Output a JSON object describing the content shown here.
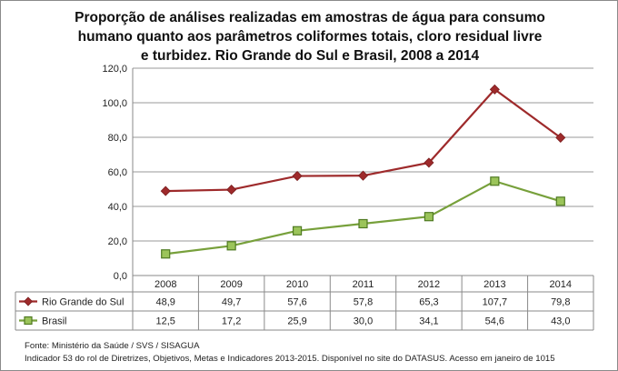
{
  "chart_data": {
    "type": "line",
    "title_lines": [
      "Proporção de análises realizadas em amostras de água para consumo",
      "humano quanto aos parâmetros coliformes totais, cloro residual livre",
      "e turbidez. Rio Grande do Sul e Brasil, 2008 a 2014"
    ],
    "categories": [
      "2008",
      "2009",
      "2010",
      "2011",
      "2012",
      "2013",
      "2014"
    ],
    "series": [
      {
        "name": "Rio Grande do Sul",
        "values": [
          48.9,
          49.7,
          57.6,
          57.8,
          65.3,
          107.7,
          79.8
        ],
        "labels": [
          "48,9",
          "49,7",
          "57,6",
          "57,8",
          "65,3",
          "107,7",
          "79,8"
        ],
        "color": "#9e2a2b",
        "marker": "diamond"
      },
      {
        "name": "Brasil",
        "values": [
          12.5,
          17.2,
          25.9,
          30.0,
          34.1,
          54.6,
          43.0
        ],
        "labels": [
          "12,5",
          "17,2",
          "25,9",
          "30,0",
          "34,1",
          "54,6",
          "43,0"
        ],
        "color": "#77a03b",
        "marker": "square"
      }
    ],
    "ylim": [
      0,
      120
    ],
    "yticks": [
      0,
      20,
      40,
      60,
      80,
      100,
      120
    ],
    "ytick_labels": [
      "0,0",
      "20,0",
      "40,0",
      "60,0",
      "80,0",
      "100,0",
      "120,0"
    ],
    "grid": true,
    "legend": "data-table"
  },
  "source": {
    "line1": "Fonte: Ministério da Saúde / SVS / SISAGUA",
    "line2": "Indicador 53 do rol de Diretrizes, Objetivos, Metas e Indicadores 2013-2015. Disponível no site do DATASUS. Acesso em janeiro de 1015"
  }
}
